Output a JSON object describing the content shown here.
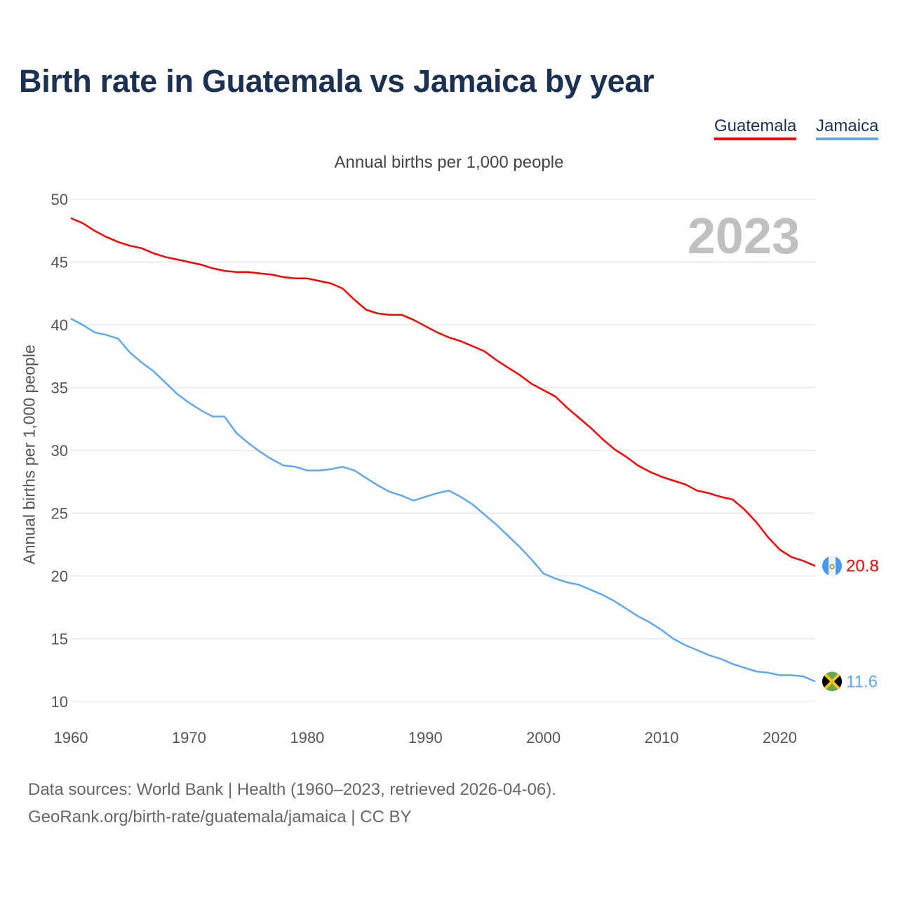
{
  "title": "Birth rate in Guatemala vs Jamaica by year",
  "legend": [
    "Guatemala",
    "Jamaica"
  ],
  "subtitle": "Annual births per 1,000 people",
  "year_label": "2023",
  "footer": {
    "line1": "Data sources: World Bank | Health (1960–2023, retrieved 2026-04-06).",
    "line2": "GeoRank.org/birth-rate/guatemala/jamaica | CC BY"
  },
  "chart_data": {
    "type": "line",
    "title": "Birth rate in Guatemala vs Jamaica by year",
    "xlabel": "",
    "ylabel": "Annual births per 1,000 people",
    "xlim": [
      1960,
      2023
    ],
    "ylim": [
      10,
      50
    ],
    "xticks": [
      1960,
      1970,
      1980,
      1990,
      2000,
      2010,
      2020
    ],
    "yticks": [
      10,
      15,
      20,
      25,
      30,
      35,
      40,
      45,
      50
    ],
    "grid": true,
    "legend_position": "top-right",
    "x_start": 1960,
    "series": [
      {
        "name": "Guatemala",
        "color": "#ff0000",
        "end_label": "20.8",
        "values": [
          48.5,
          48.1,
          47.5,
          47.0,
          46.6,
          46.3,
          46.1,
          45.7,
          45.4,
          45.2,
          45.0,
          44.8,
          44.5,
          44.3,
          44.2,
          44.2,
          44.1,
          44.0,
          43.8,
          43.7,
          43.7,
          43.5,
          43.3,
          42.9,
          42.0,
          41.2,
          40.9,
          40.8,
          40.8,
          40.4,
          39.9,
          39.4,
          39.0,
          38.7,
          38.3,
          37.9,
          37.2,
          36.6,
          36.0,
          35.3,
          34.8,
          34.3,
          33.4,
          32.6,
          31.8,
          30.9,
          30.1,
          29.5,
          28.8,
          28.3,
          27.9,
          27.6,
          27.3,
          26.8,
          26.6,
          26.3,
          26.1,
          25.3,
          24.3,
          23.1,
          22.1,
          21.5,
          21.2,
          20.8
        ]
      },
      {
        "name": "Jamaica",
        "color": "#5fa8ee",
        "end_label": "11.6",
        "values": [
          40.5,
          40.0,
          39.4,
          39.2,
          38.9,
          37.8,
          37.0,
          36.3,
          35.4,
          34.5,
          33.8,
          33.2,
          32.7,
          32.7,
          31.4,
          30.6,
          29.9,
          29.3,
          28.8,
          28.7,
          28.4,
          28.4,
          28.5,
          28.7,
          28.4,
          27.8,
          27.2,
          26.7,
          26.4,
          26.0,
          26.3,
          26.6,
          26.8,
          26.3,
          25.7,
          24.9,
          24.1,
          23.2,
          22.3,
          21.3,
          20.2,
          19.8,
          19.5,
          19.3,
          18.9,
          18.5,
          18.0,
          17.4,
          16.8,
          16.3,
          15.7,
          15.0,
          14.5,
          14.1,
          13.7,
          13.4,
          13.0,
          12.7,
          12.4,
          12.3,
          12.1,
          12.1,
          12.0,
          11.6
        ]
      }
    ]
  }
}
